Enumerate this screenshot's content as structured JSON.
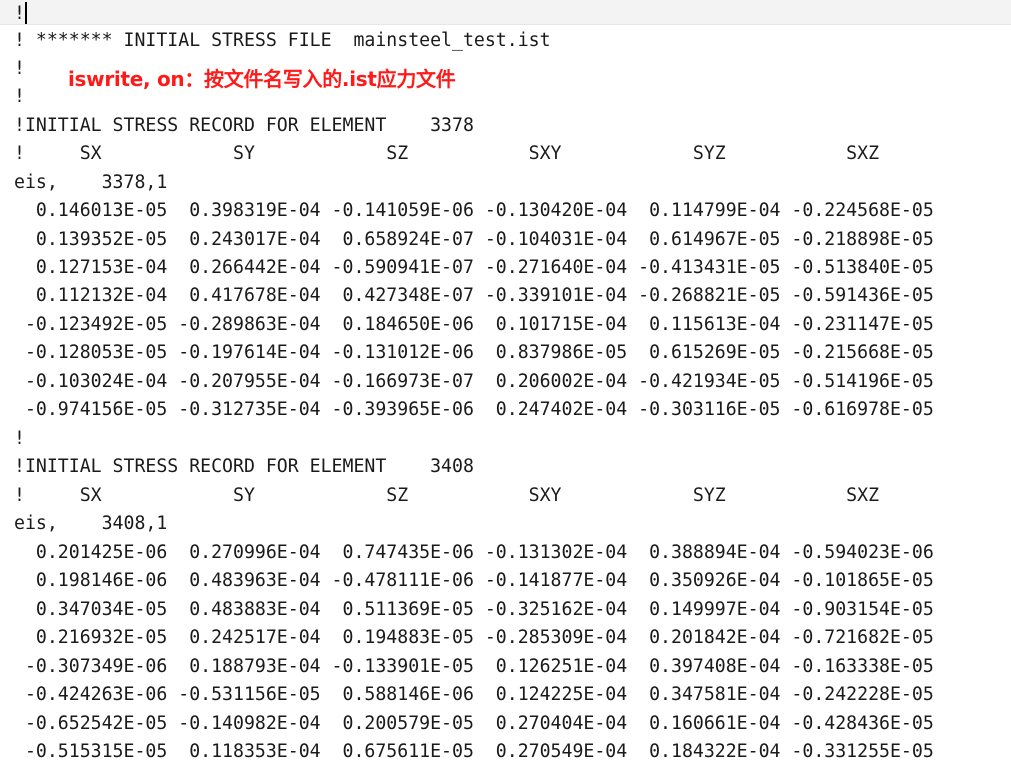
{
  "annotation": "iswrite, on：按文件名写入的.ist应力文件",
  "lines": [
    "!",
    "! ******* INITIAL STRESS FILE  mainsteel_test.ist",
    "!",
    "!",
    "!INITIAL STRESS RECORD FOR ELEMENT    3378",
    "!     SX            SY            SZ           SXY            SYZ           SXZ",
    "eis,    3378,1",
    "  0.146013E-05  0.398319E-04 -0.141059E-06 -0.130420E-04  0.114799E-04 -0.224568E-05",
    "  0.139352E-05  0.243017E-04  0.658924E-07 -0.104031E-04  0.614967E-05 -0.218898E-05",
    "  0.127153E-04  0.266442E-04 -0.590941E-07 -0.271640E-04 -0.413431E-05 -0.513840E-05",
    "  0.112132E-04  0.417678E-04  0.427348E-07 -0.339101E-04 -0.268821E-05 -0.591436E-05",
    " -0.123492E-05 -0.289863E-04  0.184650E-06  0.101715E-04  0.115613E-04 -0.231147E-05",
    " -0.128053E-05 -0.197614E-04 -0.131012E-06  0.837986E-05  0.615269E-05 -0.215668E-05",
    " -0.103024E-04 -0.207955E-04 -0.166973E-07  0.206002E-04 -0.421934E-05 -0.514196E-05",
    " -0.974156E-05 -0.312735E-04 -0.393965E-06  0.247402E-04 -0.303116E-05 -0.616978E-05",
    "!",
    "!INITIAL STRESS RECORD FOR ELEMENT    3408",
    "!     SX            SY            SZ           SXY            SYZ           SXZ",
    "eis,    3408,1",
    "  0.201425E-06  0.270996E-04  0.747435E-06 -0.131302E-04  0.388894E-04 -0.594023E-06",
    "  0.198146E-06  0.483963E-04 -0.478111E-06 -0.141877E-04  0.350926E-04 -0.101865E-05",
    "  0.347034E-05  0.483883E-04  0.511369E-05 -0.325162E-04  0.149997E-04 -0.903154E-05",
    "  0.216932E-05  0.242517E-04  0.194883E-05 -0.285309E-04  0.201842E-04 -0.721682E-05",
    " -0.307349E-06  0.188793E-04 -0.133901E-05  0.126251E-04  0.397408E-04 -0.163338E-05",
    " -0.424263E-06 -0.531156E-05  0.588146E-06  0.124225E-04  0.347581E-04 -0.242228E-05",
    " -0.652542E-05 -0.140982E-04  0.200579E-05  0.270404E-04  0.160661E-04 -0.428436E-05",
    " -0.515315E-05  0.118353E-04  0.675611E-05  0.270549E-04  0.184322E-04 -0.331255E-05"
  ]
}
